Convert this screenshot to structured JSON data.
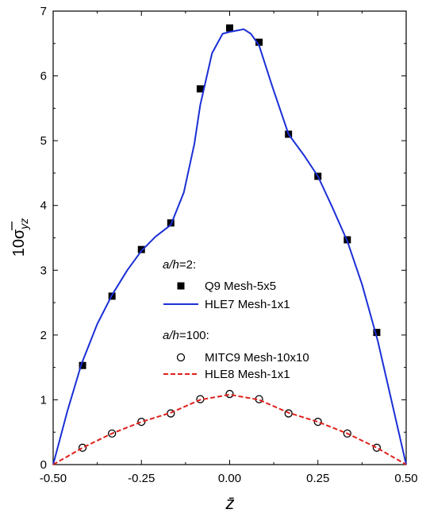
{
  "chart_data": {
    "type": "line",
    "xlabel": "z̄",
    "ylabel": {
      "prefix": "10",
      "symbol": "σ",
      "subscript": "yz"
    },
    "xlim": [
      -0.5,
      0.5
    ],
    "ylim": [
      0,
      7
    ],
    "xticks": [
      -0.5,
      -0.25,
      0.0,
      0.25,
      0.5
    ],
    "xtick_labels": [
      "-0.50",
      "-0.25",
      "0.00",
      "0.25",
      "0.50"
    ],
    "yticks": [
      0,
      1,
      2,
      3,
      4,
      5,
      6,
      7
    ],
    "ytick_labels": [
      "0",
      "1",
      "2",
      "3",
      "4",
      "5",
      "6",
      "7"
    ],
    "grid": false,
    "legend": {
      "placement": "center",
      "groups": [
        {
          "heading_italic": "a/h",
          "heading_rest": "=2:",
          "entries": [
            0,
            1
          ]
        },
        {
          "heading_italic": "a/h",
          "heading_rest": "=100:",
          "entries": [
            2,
            3
          ]
        }
      ]
    },
    "series": [
      {
        "name": "Q9 Mesh-5x5",
        "style": "square-marker",
        "color": "#000000",
        "x": [
          -0.4167,
          -0.3333,
          -0.25,
          -0.1667,
          -0.0833,
          0.0,
          0.0833,
          0.1667,
          0.25,
          0.3333,
          0.4167
        ],
        "y": [
          1.53,
          2.6,
          3.32,
          3.73,
          5.8,
          6.74,
          6.52,
          5.1,
          4.45,
          3.47,
          2.04
        ]
      },
      {
        "name": "HLE7 Mesh-1x1",
        "style": "solid-line",
        "color": "#1a2fd6",
        "x": [
          -0.5,
          -0.46,
          -0.42,
          -0.375,
          -0.333,
          -0.29,
          -0.25,
          -0.21,
          -0.1667,
          -0.13,
          -0.1,
          -0.0833,
          -0.05,
          -0.02,
          0.0,
          0.02,
          0.04,
          0.06,
          0.0833,
          0.12,
          0.1667,
          0.21,
          0.25,
          0.29,
          0.3333,
          0.375,
          0.42,
          0.46,
          0.5
        ],
        "y": [
          0.0,
          0.82,
          1.55,
          2.17,
          2.62,
          3.0,
          3.3,
          3.52,
          3.7,
          4.2,
          4.95,
          5.55,
          6.35,
          6.65,
          6.68,
          6.7,
          6.72,
          6.65,
          6.47,
          5.85,
          5.1,
          4.78,
          4.45,
          3.98,
          3.45,
          2.78,
          1.9,
          0.95,
          0.0
        ]
      },
      {
        "name": "MITC9 Mesh-10x10",
        "style": "open-circle-marker",
        "color": "#000000",
        "x": [
          -0.4167,
          -0.3333,
          -0.25,
          -0.1667,
          -0.0833,
          0.0,
          0.0833,
          0.1667,
          0.25,
          0.3333,
          0.4167
        ],
        "y": [
          0.26,
          0.48,
          0.66,
          0.79,
          1.01,
          1.09,
          1.01,
          0.79,
          0.66,
          0.48,
          0.26
        ]
      },
      {
        "name": "HLE8 Mesh-1x1",
        "style": "dashed-line",
        "color": "#e0201b",
        "x": [
          -0.5,
          -0.4167,
          -0.3333,
          -0.25,
          -0.1667,
          -0.0833,
          0.0,
          0.0833,
          0.1667,
          0.25,
          0.3333,
          0.4167,
          0.5
        ],
        "y": [
          0.0,
          0.26,
          0.48,
          0.66,
          0.8,
          1.0,
          1.08,
          1.0,
          0.8,
          0.66,
          0.48,
          0.26,
          0.0
        ]
      }
    ]
  }
}
